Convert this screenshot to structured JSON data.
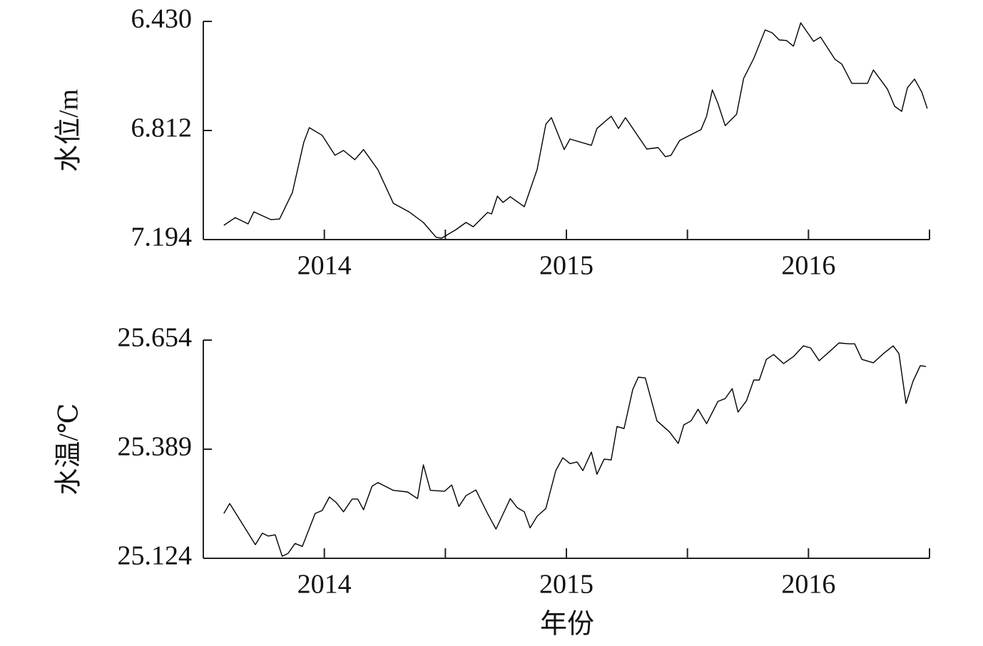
{
  "chart_data": [
    {
      "type": "line",
      "y_label": "水位/m",
      "color": "#000000",
      "xlim": [
        2013.5,
        2016.5
      ],
      "xticks": [
        2014,
        2015,
        2016
      ],
      "xminorticks": [
        2014.5,
        2015.5,
        2016.5
      ],
      "ylim": [
        7.194,
        6.43
      ],
      "yticks": [
        {
          "value": 6.43,
          "label": "6.430"
        },
        6.812,
        7.194
      ],
      "x": [
        2013.585,
        2013.632,
        2013.685,
        2013.709,
        2013.779,
        2013.815,
        2013.868,
        2013.915,
        2013.938,
        2013.991,
        2014.044,
        2014.079,
        2014.126,
        2014.162,
        2014.221,
        2014.285,
        2014.35,
        2014.409,
        2014.462,
        2014.485,
        2014.544,
        2014.585,
        2014.615,
        2014.674,
        2014.691,
        2014.715,
        2014.738,
        2014.768,
        2014.826,
        2014.879,
        2014.915,
        2014.938,
        2014.991,
        2015.015,
        2015.103,
        2015.126,
        2015.185,
        2015.215,
        2015.244,
        2015.332,
        2015.379,
        2015.409,
        2015.432,
        2015.468,
        2015.556,
        2015.579,
        2015.603,
        2015.626,
        2015.656,
        2015.703,
        2015.732,
        2015.774,
        2015.821,
        2015.85,
        2015.879,
        2015.909,
        2015.938,
        2015.968,
        2016.021,
        2016.05,
        2016.109,
        2016.138,
        2016.179,
        2016.244,
        2016.268,
        2016.326,
        2016.356,
        2016.385,
        2016.409,
        2016.438,
        2016.468,
        2016.491
      ],
      "values": [
        7.144,
        7.117,
        7.139,
        7.097,
        7.124,
        7.122,
        7.029,
        6.854,
        6.802,
        6.829,
        6.899,
        6.882,
        6.914,
        6.879,
        6.949,
        7.067,
        7.097,
        7.134,
        7.186,
        7.189,
        7.159,
        7.134,
        7.149,
        7.099,
        7.104,
        7.042,
        7.064,
        7.044,
        7.079,
        6.949,
        6.79,
        6.767,
        6.879,
        6.842,
        6.864,
        6.805,
        6.762,
        6.805,
        6.767,
        6.877,
        6.872,
        6.904,
        6.899,
        6.847,
        6.809,
        6.762,
        6.67,
        6.717,
        6.795,
        6.755,
        6.63,
        6.56,
        6.46,
        6.47,
        6.495,
        6.497,
        6.517,
        6.435,
        6.5,
        6.485,
        6.562,
        6.58,
        6.647,
        6.647,
        6.6,
        6.667,
        6.727,
        6.745,
        6.662,
        6.632,
        6.677,
        6.735
      ]
    },
    {
      "type": "line",
      "y_label": "水温/℃",
      "x_label": "年份",
      "color": "#000000",
      "xlim": [
        2013.5,
        2016.5
      ],
      "xticks": [
        2014,
        2015,
        2016
      ],
      "xminorticks": [
        2014.5,
        2015.5,
        2016.5
      ],
      "ylim": [
        25.124,
        25.654
      ],
      "yticks": [
        25.654,
        25.389,
        25.124
      ],
      "x": [
        2013.585,
        2013.609,
        2013.644,
        2013.715,
        2013.744,
        2013.768,
        2013.797,
        2013.826,
        2013.85,
        2013.879,
        2013.909,
        2013.962,
        2013.991,
        2014.021,
        2014.05,
        2014.079,
        2014.115,
        2014.138,
        2014.162,
        2014.197,
        2014.221,
        2014.285,
        2014.344,
        2014.385,
        2014.409,
        2014.438,
        2014.497,
        2014.526,
        2014.556,
        2014.585,
        2014.626,
        2014.674,
        2014.709,
        2014.768,
        2014.797,
        2014.826,
        2014.85,
        2014.879,
        2014.915,
        2014.956,
        2014.985,
        2015.015,
        2015.044,
        2015.068,
        2015.103,
        2015.126,
        2015.156,
        2015.185,
        2015.209,
        2015.238,
        2015.274,
        2015.297,
        2015.326,
        2015.374,
        2015.426,
        2015.462,
        2015.485,
        2015.515,
        2015.544,
        2015.579,
        2015.626,
        2015.656,
        2015.685,
        2015.709,
        2015.744,
        2015.774,
        2015.797,
        2015.826,
        2015.856,
        2015.897,
        2015.938,
        2015.979,
        2016.009,
        2016.044,
        2016.085,
        2016.126,
        2016.168,
        2016.191,
        2016.221,
        2016.268,
        2016.309,
        2016.35,
        2016.374,
        2016.403,
        2016.432,
        2016.462,
        2016.485
      ],
      "values": [
        25.233,
        25.257,
        25.224,
        25.157,
        25.185,
        25.178,
        25.181,
        25.129,
        25.136,
        25.16,
        25.153,
        25.233,
        25.24,
        25.273,
        25.259,
        25.237,
        25.268,
        25.268,
        25.242,
        25.299,
        25.308,
        25.289,
        25.285,
        25.269,
        25.351,
        25.289,
        25.287,
        25.302,
        25.25,
        25.276,
        25.29,
        25.233,
        25.195,
        25.269,
        25.247,
        25.237,
        25.198,
        25.226,
        25.245,
        25.337,
        25.368,
        25.354,
        25.358,
        25.337,
        25.382,
        25.328,
        25.365,
        25.363,
        25.444,
        25.439,
        25.534,
        25.564,
        25.562,
        25.458,
        25.431,
        25.403,
        25.448,
        25.458,
        25.486,
        25.451,
        25.505,
        25.512,
        25.536,
        25.479,
        25.507,
        25.557,
        25.557,
        25.607,
        25.619,
        25.597,
        25.614,
        25.64,
        25.635,
        25.604,
        25.625,
        25.647,
        25.645,
        25.645,
        25.607,
        25.599,
        25.621,
        25.64,
        25.621,
        25.5,
        25.554,
        25.592,
        25.59
      ]
    }
  ]
}
